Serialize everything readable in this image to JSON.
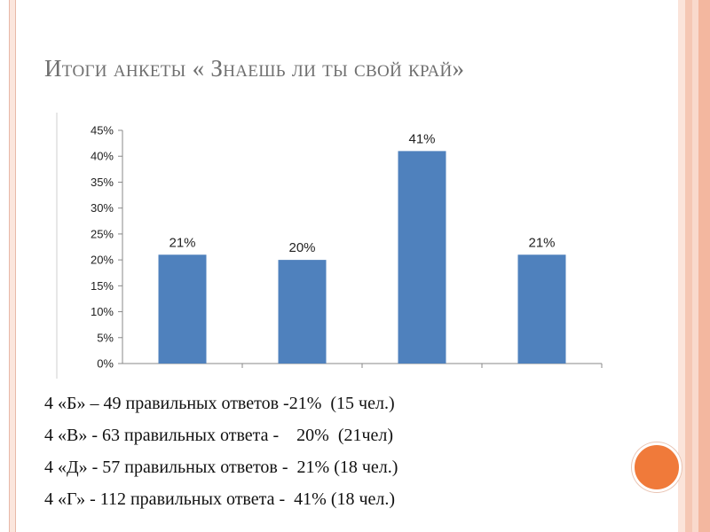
{
  "slide": {
    "title": "Итоги анкеты  « Знаешь ли ты свой край»"
  },
  "chart_data": {
    "type": "bar",
    "categories": [
      "",
      "",
      "",
      ""
    ],
    "values": [
      21,
      20,
      41,
      21
    ],
    "data_labels": [
      "21%",
      "20%",
      "41%",
      "21%"
    ],
    "ylim": [
      0,
      45
    ],
    "yticks": [
      "0%",
      "5%",
      "10%",
      "15%",
      "20%",
      "25%",
      "30%",
      "35%",
      "40%",
      "45%"
    ],
    "bar_color": "#4f81bd",
    "grid": false,
    "xlabel": "",
    "ylabel": "",
    "title": ""
  },
  "results": [
    "4 «Б» – 49 правильных ответов -21%  (15 чел.)",
    "4 «В» - 63 правильных ответа -    20%  (21чел)",
    "4 «Д» - 57 правильных ответов -  21% (18 чел.)",
    "4 «Г» - 112 правильных ответа -  41% (18 чел.)"
  ],
  "colors": {
    "accent": "#f07a3a",
    "frame_stripes": [
      "#f5c7b4",
      "#f9d9cc",
      "#f3b79f",
      "#fbe4da"
    ],
    "title_text": "#6f6f6f"
  }
}
